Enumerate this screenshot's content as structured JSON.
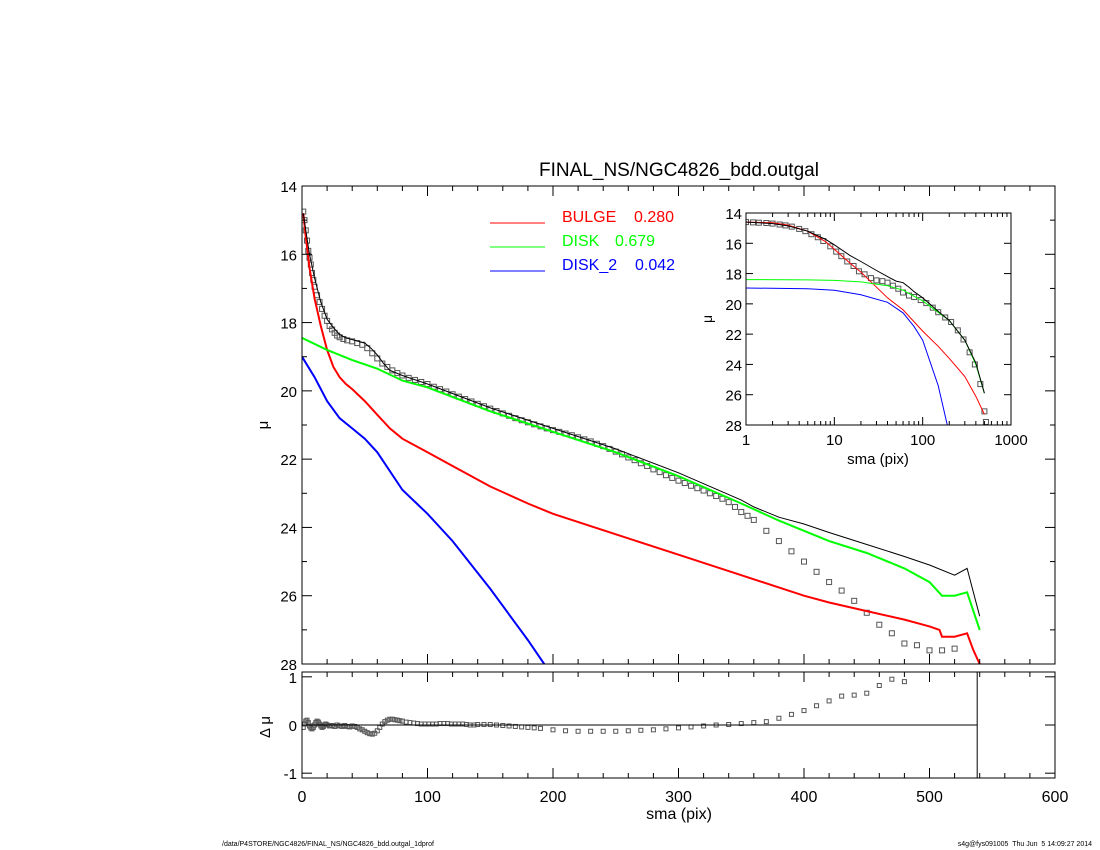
{
  "footer": {
    "left": "/data/P4STORE/NGC4826/FINAL_NS/NGC4826_bdd.outgal_1dprof",
    "right": "s4g@fys091005  Thu Jun  5 14:09:27 2014"
  },
  "chart_data": [
    {
      "id": "main",
      "type": "line",
      "title": "FINAL_NS/NGC4826_bdd.outgal",
      "xlabel": "",
      "ylabel": "μ",
      "xlim": [
        0,
        600
      ],
      "ylim": [
        28,
        14
      ],
      "yticks": [
        14,
        16,
        18,
        20,
        22,
        24,
        26,
        28
      ],
      "yticklabels": [
        "14",
        "16",
        "18",
        "20",
        "22",
        "24",
        "26",
        "28"
      ],
      "legend": [
        {
          "label": "BULGE",
          "value": "0.280",
          "color": "#ff0000"
        },
        {
          "label": "DISK",
          "value": "0.679",
          "color": "#00ff00"
        },
        {
          "label": "DISK_2",
          "value": "0.042",
          "color": "#0000ff"
        }
      ],
      "legend_position": "top-center",
      "series": [
        {
          "name": "BULGE",
          "color": "#ff0000",
          "x": [
            1,
            3,
            6,
            10,
            15,
            20,
            25,
            30,
            35,
            40,
            50,
            60,
            70,
            80,
            100,
            120,
            150,
            180,
            200,
            250,
            300,
            350,
            400,
            420,
            450,
            480,
            500,
            508,
            510,
            520,
            530,
            535,
            540
          ],
          "y": [
            14.8,
            15.5,
            16.4,
            17.3,
            18.1,
            18.8,
            19.3,
            19.6,
            19.8,
            19.95,
            20.3,
            20.7,
            21.1,
            21.4,
            21.8,
            22.2,
            22.8,
            23.3,
            23.6,
            24.2,
            24.8,
            25.4,
            26.0,
            26.2,
            26.45,
            26.7,
            26.9,
            27.0,
            27.2,
            27.2,
            27.1,
            27.6,
            28.0
          ]
        },
        {
          "name": "DISK",
          "color": "#00ff00",
          "x": [
            0,
            20,
            40,
            60,
            80,
            100,
            150,
            200,
            250,
            300,
            350,
            380,
            400,
            420,
            450,
            480,
            500,
            510,
            520,
            530,
            540
          ],
          "y": [
            18.45,
            18.8,
            19.1,
            19.35,
            19.7,
            19.9,
            20.6,
            21.2,
            21.8,
            22.5,
            23.3,
            23.8,
            24.1,
            24.4,
            24.75,
            25.2,
            25.6,
            26.0,
            26.0,
            25.9,
            27.0
          ]
        },
        {
          "name": "DISK_2",
          "color": "#0000ff",
          "x": [
            0,
            10,
            20,
            30,
            40,
            50,
            60,
            80,
            100,
            120,
            150,
            180,
            193
          ],
          "y": [
            19.0,
            19.6,
            20.3,
            20.8,
            21.1,
            21.4,
            21.8,
            22.9,
            23.6,
            24.4,
            25.8,
            27.3,
            28.0
          ]
        },
        {
          "name": "",
          "color": "#000000",
          "x": [
            1,
            3,
            6,
            10,
            15,
            20,
            25,
            30,
            35,
            40,
            50,
            55,
            60,
            65,
            70,
            80,
            100,
            150,
            200,
            250,
            300,
            350,
            360,
            380,
            400,
            420,
            450,
            480,
            500,
            520,
            530,
            540
          ],
          "y": [
            14.8,
            15.3,
            16.0,
            16.7,
            17.4,
            17.9,
            18.15,
            18.35,
            18.45,
            18.5,
            18.6,
            18.75,
            18.95,
            19.2,
            19.4,
            19.55,
            19.8,
            20.5,
            21.1,
            21.7,
            22.4,
            23.2,
            23.4,
            23.7,
            23.9,
            24.15,
            24.5,
            24.85,
            25.1,
            25.4,
            25.2,
            26.6
          ]
        }
      ],
      "observed": {
        "x": [
          1,
          2,
          3,
          4,
          5,
          6,
          7,
          8,
          9,
          10,
          12,
          14,
          16,
          18,
          20,
          22,
          24,
          26,
          28,
          30,
          33,
          36,
          40,
          44,
          48,
          52,
          56,
          60,
          64,
          68,
          72,
          76,
          80,
          85,
          90,
          95,
          100,
          105,
          110,
          115,
          120,
          125,
          130,
          135,
          140,
          145,
          150,
          155,
          160,
          165,
          170,
          175,
          180,
          185,
          190,
          195,
          200,
          205,
          210,
          215,
          220,
          225,
          230,
          235,
          240,
          245,
          250,
          255,
          260,
          265,
          270,
          275,
          280,
          285,
          290,
          295,
          300,
          305,
          310,
          315,
          320,
          325,
          330,
          335,
          340,
          345,
          350,
          355,
          360,
          370,
          380,
          390,
          400,
          410,
          420,
          430,
          440,
          450,
          460,
          470,
          480,
          490,
          500,
          510,
          520
        ],
        "y": [
          14.75,
          15.0,
          15.3,
          15.6,
          15.9,
          16.1,
          16.3,
          16.55,
          16.75,
          16.95,
          17.2,
          17.4,
          17.6,
          17.8,
          17.95,
          18.1,
          18.2,
          18.3,
          18.38,
          18.43,
          18.48,
          18.52,
          18.55,
          18.6,
          18.65,
          18.75,
          18.9,
          19.05,
          19.2,
          19.3,
          19.4,
          19.48,
          19.55,
          19.62,
          19.68,
          19.74,
          19.8,
          19.88,
          19.95,
          20.02,
          20.1,
          20.17,
          20.24,
          20.31,
          20.38,
          20.45,
          20.52,
          20.59,
          20.66,
          20.73,
          20.8,
          20.86,
          20.92,
          20.98,
          21.04,
          21.1,
          21.15,
          21.2,
          21.25,
          21.3,
          21.36,
          21.42,
          21.48,
          21.55,
          21.62,
          21.7,
          21.78,
          21.86,
          21.95,
          22.03,
          22.12,
          22.2,
          22.3,
          22.38,
          22.47,
          22.55,
          22.63,
          22.7,
          22.78,
          22.85,
          22.92,
          23.0,
          23.08,
          23.16,
          23.26,
          23.4,
          23.55,
          23.66,
          23.78,
          24.1,
          24.4,
          24.7,
          25.0,
          25.3,
          25.6,
          25.85,
          26.15,
          26.5,
          26.85,
          27.1,
          27.4,
          27.45,
          27.6,
          27.6,
          27.55
        ]
      }
    },
    {
      "id": "residual",
      "type": "scatter",
      "xlabel": "sma (pix)",
      "ylabel": "Δ μ",
      "xlim": [
        0,
        600
      ],
      "ylim": [
        -1.1,
        1.1
      ],
      "xticks": [
        0,
        100,
        200,
        300,
        400,
        500,
        600
      ],
      "xticklabels": [
        "0",
        "100",
        "200",
        "300",
        "400",
        "500",
        "600"
      ],
      "yticks": [
        -1,
        0,
        1
      ],
      "yticklabels": [
        "-1",
        "0",
        "1"
      ],
      "model_end_x": 538,
      "x": [
        1,
        2,
        3,
        4,
        5,
        6,
        7,
        8,
        9,
        10,
        11,
        12,
        13,
        14,
        15,
        16,
        17,
        18,
        19,
        20,
        22,
        24,
        26,
        28,
        30,
        32,
        34,
        36,
        38,
        40,
        42,
        44,
        46,
        48,
        50,
        52,
        54,
        56,
        58,
        60,
        62,
        64,
        66,
        68,
        70,
        72,
        74,
        76,
        78,
        80,
        83,
        86,
        89,
        92,
        95,
        98,
        101,
        104,
        107,
        110,
        113,
        116,
        119,
        122,
        125,
        128,
        131,
        134,
        137,
        140,
        145,
        150,
        155,
        160,
        165,
        170,
        175,
        180,
        185,
        190,
        200,
        210,
        220,
        230,
        240,
        250,
        260,
        270,
        280,
        290,
        300,
        310,
        320,
        330,
        340,
        350,
        360,
        370,
        380,
        390,
        400,
        410,
        420,
        430,
        440,
        450,
        460,
        470,
        480
      ],
      "y": [
        -0.05,
        0.02,
        0.08,
        0.1,
        0.05,
        -0.02,
        -0.06,
        -0.08,
        -0.05,
        0.0,
        0.05,
        0.08,
        0.06,
        0.02,
        -0.02,
        -0.05,
        -0.03,
        0.0,
        0.02,
        0.0,
        -0.02,
        -0.01,
        -0.03,
        0.0,
        -0.02,
        -0.03,
        -0.01,
        -0.03,
        -0.04,
        -0.02,
        -0.03,
        -0.05,
        -0.08,
        -0.1,
        -0.13,
        -0.16,
        -0.18,
        -0.19,
        -0.17,
        -0.12,
        -0.05,
        0.02,
        0.07,
        0.1,
        0.12,
        0.12,
        0.11,
        0.1,
        0.09,
        0.08,
        0.06,
        0.05,
        0.04,
        0.03,
        0.02,
        0.02,
        0.02,
        0.02,
        0.02,
        0.03,
        0.03,
        0.03,
        0.02,
        0.02,
        0.02,
        0.02,
        0.01,
        0.0,
        0.0,
        0.01,
        0.01,
        0.01,
        0.0,
        -0.01,
        -0.02,
        -0.03,
        -0.04,
        -0.05,
        -0.06,
        -0.07,
        -0.1,
        -0.12,
        -0.13,
        -0.13,
        -0.13,
        -0.13,
        -0.12,
        -0.11,
        -0.1,
        -0.08,
        -0.06,
        -0.04,
        -0.02,
        0.0,
        0.01,
        0.03,
        0.05,
        0.07,
        0.14,
        0.22,
        0.3,
        0.4,
        0.5,
        0.6,
        0.62,
        0.66,
        0.82,
        0.95,
        0.9
      ]
    },
    {
      "id": "inset",
      "type": "line",
      "xlabel": "sma (pix)",
      "ylabel": "μ",
      "xscale": "log",
      "xlim": [
        1,
        1000
      ],
      "ylim": [
        28,
        14
      ],
      "xticks": [
        1,
        10,
        100,
        1000
      ],
      "xticklabels": [
        "1",
        "10",
        "100",
        "1000"
      ],
      "yticks": [
        14,
        16,
        18,
        20,
        22,
        24,
        26,
        28
      ],
      "yticklabels": [
        "14",
        "16",
        "18",
        "20",
        "22",
        "24",
        "26",
        "28"
      ],
      "series": [
        {
          "name": "BULGE",
          "color": "#ff0000",
          "x": [
            1,
            2,
            3,
            5,
            8,
            10,
            15,
            20,
            30,
            40,
            60,
            100,
            150,
            200,
            300,
            400,
            500
          ],
          "y": [
            14.6,
            14.65,
            14.8,
            15.2,
            15.9,
            16.4,
            17.3,
            17.9,
            18.9,
            19.6,
            20.4,
            21.8,
            22.8,
            23.6,
            24.8,
            26.1,
            27.3
          ]
        },
        {
          "name": "DISK",
          "color": "#00ff00",
          "x": [
            1,
            5,
            10,
            20,
            40,
            60,
            80,
            100,
            200,
            300,
            400,
            500
          ],
          "y": [
            18.4,
            18.42,
            18.45,
            18.55,
            18.8,
            19.1,
            19.5,
            19.8,
            21.1,
            22.4,
            24.0,
            25.9
          ]
        },
        {
          "name": "DISK_2",
          "color": "#0000ff",
          "x": [
            1,
            5,
            10,
            20,
            40,
            60,
            80,
            100,
            150,
            190
          ],
          "y": [
            18.95,
            19.0,
            19.1,
            19.4,
            19.9,
            20.6,
            21.5,
            22.4,
            25.4,
            28.0
          ]
        },
        {
          "name": "",
          "color": "#000000",
          "x": [
            1,
            2,
            3,
            5,
            8,
            10,
            15,
            20,
            30,
            40,
            50,
            60,
            70,
            80,
            100,
            150,
            200,
            300,
            400,
            500
          ],
          "y": [
            14.6,
            14.7,
            14.85,
            15.2,
            15.75,
            16.1,
            16.8,
            17.2,
            17.8,
            18.2,
            18.5,
            18.6,
            18.9,
            19.2,
            19.6,
            20.5,
            21.1,
            22.4,
            23.9,
            25.9
          ]
        }
      ],
      "observed": {
        "x": [
          1,
          1.2,
          1.4,
          1.7,
          2,
          2.4,
          2.8,
          3.3,
          4,
          4.7,
          5.5,
          6.5,
          7.5,
          9,
          10.5,
          12,
          14,
          16.5,
          19,
          22,
          26,
          30,
          35,
          40,
          46,
          53,
          60,
          70,
          80,
          95,
          110,
          130,
          150,
          180,
          210,
          250,
          290,
          340,
          390,
          450,
          500,
          520
        ],
        "y": [
          14.6,
          14.62,
          14.64,
          14.66,
          14.7,
          14.76,
          14.82,
          14.9,
          15.05,
          15.2,
          15.4,
          15.6,
          15.85,
          16.2,
          16.55,
          16.85,
          17.2,
          17.5,
          17.85,
          18.05,
          18.3,
          18.45,
          18.5,
          18.6,
          18.8,
          19.0,
          19.25,
          19.45,
          19.55,
          19.75,
          19.95,
          20.25,
          20.55,
          20.9,
          21.2,
          21.75,
          22.35,
          23.2,
          24.0,
          25.3,
          27.1,
          27.8
        ]
      }
    }
  ]
}
